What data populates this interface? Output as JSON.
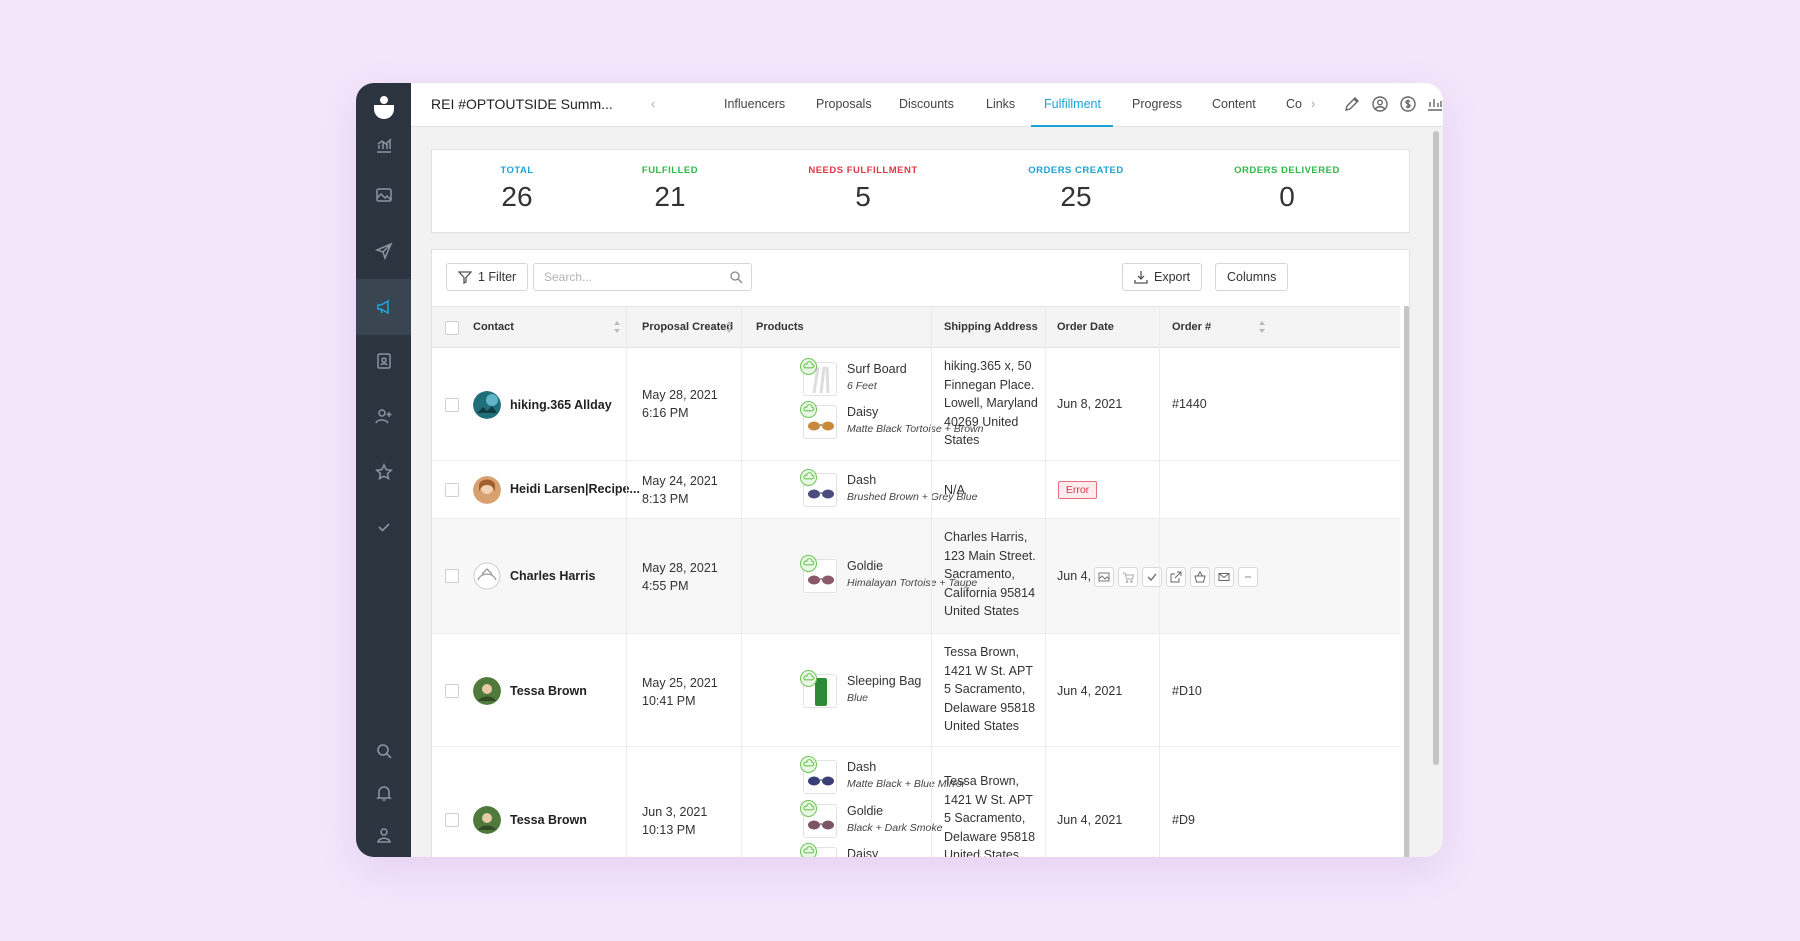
{
  "header": {
    "campaign_title": "REI #OPTOUTSIDE Summ...",
    "tabs": [
      {
        "label": "Influencers"
      },
      {
        "label": "Proposals"
      },
      {
        "label": "Discounts"
      },
      {
        "label": "Links"
      },
      {
        "label": "Fulfillment",
        "active": true
      },
      {
        "label": "Progress"
      },
      {
        "label": "Content"
      },
      {
        "label": "Co"
      }
    ],
    "right_icons": [
      "pencil-icon",
      "user-circle-icon",
      "dollar-icon",
      "bar-chart-icon",
      "image-icon"
    ]
  },
  "sidebar": {
    "icons": [
      "analytics-icon",
      "image-icon",
      "send-icon",
      "megaphone-icon",
      "contact-card-icon",
      "add-user-icon",
      "star-icon",
      "check-icon",
      "search-icon",
      "bell-icon",
      "user-icon"
    ],
    "active": "megaphone-icon"
  },
  "stats": [
    {
      "label": "TOTAL",
      "value": "26",
      "color": "#1ba3d6"
    },
    {
      "label": "FULFILLED",
      "value": "21",
      "color": "#2fb84a"
    },
    {
      "label": "NEEDS FULFILLMENT",
      "value": "5",
      "color": "#e0394a"
    },
    {
      "label": "ORDERS CREATED",
      "value": "25",
      "color": "#1ba3d6"
    },
    {
      "label": "ORDERS DELIVERED",
      "value": "0",
      "color": "#2fb84a"
    }
  ],
  "toolbar": {
    "filter_label": "1 Filter",
    "search_placeholder": "Search...",
    "export_label": "Export",
    "columns_label": "Columns"
  },
  "table": {
    "columns": [
      "Contact",
      "Proposal Created",
      "Products",
      "Shipping Address",
      "Order Date",
      "Order #"
    ],
    "rows": [
      {
        "contact": "hiking.365 Allday",
        "created_date": "May 28, 2021",
        "created_time": "6:16 PM",
        "products": [
          {
            "name": "Surf Board",
            "variant": "6 Feet"
          },
          {
            "name": "Daisy",
            "variant": "Matte Black Tortoise + Brown"
          }
        ],
        "address": [
          "hiking.365 x, 50",
          "Finnegan Place.",
          "Lowell, Maryland",
          "40269 United",
          "States"
        ],
        "order_date": "Jun 8, 2021",
        "order_num": "#1440"
      },
      {
        "contact": "Heidi Larsen|Recipe...",
        "created_date": "May 24, 2021",
        "created_time": "8:13 PM",
        "products": [
          {
            "name": "Dash",
            "variant": "Brushed Brown + Grey Blue"
          }
        ],
        "address": [
          "N/A"
        ],
        "order_status": "Error",
        "order_num": ""
      },
      {
        "contact": "Charles Harris",
        "created_date": "May 28, 2021",
        "created_time": "4:55 PM",
        "products": [
          {
            "name": "Goldie",
            "variant": "Himalayan Tortoise + Taupe"
          }
        ],
        "address": [
          "Charles Harris,",
          "123 Main Street.",
          "Sacramento,",
          "California 95814",
          "United States"
        ],
        "order_date": "Jun 4,",
        "row_actions": [
          "image-icon",
          "cart-icon",
          "check-icon",
          "external-link-icon",
          "basket-icon",
          "mail-icon",
          "more-icon"
        ]
      },
      {
        "contact": "Tessa Brown",
        "created_date": "May 25, 2021",
        "created_time": "10:41 PM",
        "products": [
          {
            "name": "Sleeping Bag",
            "variant": "Blue"
          }
        ],
        "address": [
          "Tessa Brown,",
          "1421 W St. APT",
          "5 Sacramento,",
          "Delaware 95818",
          "United States"
        ],
        "order_date": "Jun 4, 2021",
        "order_num": "#D10"
      },
      {
        "contact": "Tessa Brown",
        "created_date": "Jun 3, 2021",
        "created_time": "10:13 PM",
        "products": [
          {
            "name": "Dash",
            "variant": "Matte Black + Blue Mirror"
          },
          {
            "name": "Goldie",
            "variant": "Black + Dark Smoke"
          },
          {
            "name": "Daisy",
            "variant": ""
          }
        ],
        "address": [
          "Tessa Brown,",
          "1421 W St. APT",
          "5 Sacramento,",
          "Delaware 95818",
          "United States"
        ],
        "order_date": "Jun 4, 2021",
        "order_num": "#D9"
      }
    ]
  }
}
